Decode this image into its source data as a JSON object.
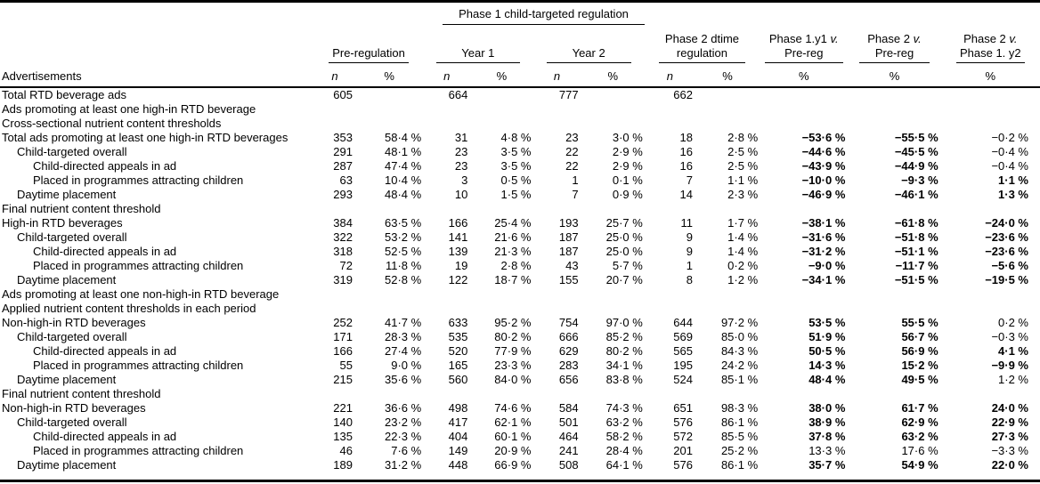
{
  "table": {
    "spanner": {
      "label": "Phase 1 child-targeted regulation"
    },
    "stub_header": "Advertisements",
    "groups": [
      {
        "lines": [
          "Pre-regulation"
        ],
        "span": 2
      },
      {
        "lines": [
          "Year 1"
        ],
        "span": 2
      },
      {
        "lines": [
          "Year 2"
        ],
        "span": 2
      },
      {
        "lines": [
          "Phase 2 dtime",
          "regulation"
        ],
        "span": 2
      },
      {
        "lines": [
          "Phase 1.y1 v.",
          "Pre-reg"
        ],
        "span": 1
      },
      {
        "lines": [
          "Phase 2 v.",
          "Pre-reg"
        ],
        "span": 1
      },
      {
        "lines": [
          "Phase 2 v.",
          "Phase 1. y2"
        ],
        "span": 1
      }
    ],
    "sub_headers": [
      "n",
      "%",
      "n",
      "%",
      "n",
      "%",
      "n",
      "%",
      "%",
      "%",
      "%"
    ],
    "rows": [
      {
        "label": "Total RTD beverage ads",
        "indent": 0,
        "cells": [
          "605",
          "",
          "664",
          "",
          "777",
          "",
          "662",
          "",
          "",
          "",
          ""
        ],
        "bold": [
          false,
          false,
          false
        ]
      },
      {
        "label": "Ads promoting at least one high-in RTD beverage",
        "indent": 0,
        "cells": [
          "",
          "",
          "",
          "",
          "",
          "",
          "",
          "",
          "",
          "",
          ""
        ],
        "bold": [
          false,
          false,
          false
        ]
      },
      {
        "label": "Cross-sectional nutrient content thresholds",
        "indent": 0,
        "cells": [
          "",
          "",
          "",
          "",
          "",
          "",
          "",
          "",
          "",
          "",
          ""
        ],
        "bold": [
          false,
          false,
          false
        ]
      },
      {
        "label": "Total ads promoting at least one high-in RTD beverages",
        "indent": 0,
        "cells": [
          "353",
          "58·4 %",
          "31",
          "4·8 %",
          "23",
          "3·0 %",
          "18",
          "2·8 %",
          "−53·6 %",
          "−55·5 %",
          "−0·2 %"
        ],
        "bold": [
          true,
          true,
          false
        ]
      },
      {
        "label": "Child-targeted overall",
        "indent": 1,
        "cells": [
          "291",
          "48·1 %",
          "23",
          "3·5 %",
          "22",
          "2·9 %",
          "16",
          "2·5 %",
          "−44·6 %",
          "−45·5 %",
          "−0·4 %"
        ],
        "bold": [
          true,
          true,
          false
        ]
      },
      {
        "label": "Child-directed appeals in ad",
        "indent": 2,
        "cells": [
          "287",
          "47·4 %",
          "23",
          "3·5 %",
          "22",
          "2·9 %",
          "16",
          "2·5 %",
          "−43·9 %",
          "−44·9 %",
          "−0·4 %"
        ],
        "bold": [
          true,
          true,
          false
        ]
      },
      {
        "label": "Placed in programmes attracting children",
        "indent": 2,
        "cells": [
          "63",
          "10·4 %",
          "3",
          "0·5 %",
          "1",
          "0·1 %",
          "7",
          "1·1 %",
          "−10·0 %",
          "−9·3 %",
          "1·1 %"
        ],
        "bold": [
          true,
          true,
          true
        ]
      },
      {
        "label": "Daytime placement",
        "indent": 1,
        "cells": [
          "293",
          "48·4 %",
          "10",
          "1·5 %",
          "7",
          "0·9 %",
          "14",
          "2·3 %",
          "−46·9 %",
          "−46·1 %",
          "1·3 %"
        ],
        "bold": [
          true,
          true,
          true
        ]
      },
      {
        "label": "Final nutrient content threshold",
        "indent": 0,
        "cells": [
          "",
          "",
          "",
          "",
          "",
          "",
          "",
          "",
          "",
          "",
          ""
        ],
        "bold": [
          false,
          false,
          false
        ]
      },
      {
        "label": "High-in RTD beverages",
        "indent": 0,
        "cells": [
          "384",
          "63·5 %",
          "166",
          "25·4 %",
          "193",
          "25·7 %",
          "11",
          "1·7 %",
          "−38·1 %",
          "−61·8 %",
          "−24·0 %"
        ],
        "bold": [
          true,
          true,
          true
        ]
      },
      {
        "label": "Child-targeted overall",
        "indent": 1,
        "cells": [
          "322",
          "53·2 %",
          "141",
          "21·6 %",
          "187",
          "25·0 %",
          "9",
          "1·4 %",
          "−31·6 %",
          "−51·8 %",
          "−23·6 %"
        ],
        "bold": [
          true,
          true,
          true
        ]
      },
      {
        "label": "Child-directed appeals in ad",
        "indent": 2,
        "cells": [
          "318",
          "52·5 %",
          "139",
          "21·3 %",
          "187",
          "25·0 %",
          "9",
          "1·4 %",
          "−31·2 %",
          "−51·1 %",
          "−23·6 %"
        ],
        "bold": [
          true,
          true,
          true
        ]
      },
      {
        "label": "Placed in programmes attracting children",
        "indent": 2,
        "cells": [
          "72",
          "11·8 %",
          "19",
          "2·8 %",
          "43",
          "5·7 %",
          "1",
          "0·2 %",
          "−9·0 %",
          "−11·7 %",
          "−5·6 %"
        ],
        "bold": [
          true,
          true,
          true
        ]
      },
      {
        "label": "Daytime placement",
        "indent": 1,
        "cells": [
          "319",
          "52·8 %",
          "122",
          "18·7 %",
          "155",
          "20·7 %",
          "8",
          "1·2 %",
          "−34·1 %",
          "−51·5 %",
          "−19·5 %"
        ],
        "bold": [
          true,
          true,
          true
        ]
      },
      {
        "label": "Ads promoting at least one non-high-in RTD beverage",
        "indent": 0,
        "cells": [
          "",
          "",
          "",
          "",
          "",
          "",
          "",
          "",
          "",
          "",
          ""
        ],
        "bold": [
          false,
          false,
          false
        ]
      },
      {
        "label": "Applied nutrient content thresholds in each period",
        "indent": 0,
        "cells": [
          "",
          "",
          "",
          "",
          "",
          "",
          "",
          "",
          "",
          "",
          ""
        ],
        "bold": [
          false,
          false,
          false
        ]
      },
      {
        "label": "Non-high-in RTD beverages",
        "indent": 0,
        "cells": [
          "252",
          "41·7 %",
          "633",
          "95·2 %",
          "754",
          "97·0 %",
          "644",
          "97·2 %",
          "53·5 %",
          "55·5 %",
          "0·2 %"
        ],
        "bold": [
          true,
          true,
          false
        ]
      },
      {
        "label": "Child-targeted overall",
        "indent": 1,
        "cells": [
          "171",
          "28·3 %",
          "535",
          "80·2 %",
          "666",
          "85·2 %",
          "569",
          "85·0 %",
          "51·9 %",
          "56·7 %",
          "−0·3 %"
        ],
        "bold": [
          true,
          true,
          false
        ]
      },
      {
        "label": "Child-directed appeals in ad",
        "indent": 2,
        "cells": [
          "166",
          "27·4 %",
          "520",
          "77·9 %",
          "629",
          "80·2 %",
          "565",
          "84·3 %",
          "50·5 %",
          "56·9 %",
          "4·1 %"
        ],
        "bold": [
          true,
          true,
          true
        ]
      },
      {
        "label": "Placed in programmes attracting children",
        "indent": 2,
        "cells": [
          "55",
          "9·0 %",
          "165",
          "23·3 %",
          "283",
          "34·1 %",
          "195",
          "24·2 %",
          "14·3 %",
          "15·2 %",
          "−9·9 %"
        ],
        "bold": [
          true,
          true,
          true
        ]
      },
      {
        "label": "Daytime placement",
        "indent": 1,
        "cells": [
          "215",
          "35·6 %",
          "560",
          "84·0 %",
          "656",
          "83·8 %",
          "524",
          "85·1 %",
          "48·4 %",
          "49·5 %",
          "1·2 %"
        ],
        "bold": [
          true,
          true,
          false
        ]
      },
      {
        "label": "Final nutrient content threshold",
        "indent": 0,
        "cells": [
          "",
          "",
          "",
          "",
          "",
          "",
          "",
          "",
          "",
          "",
          ""
        ],
        "bold": [
          false,
          false,
          false
        ]
      },
      {
        "label": "Non-high-in RTD beverages",
        "indent": 0,
        "cells": [
          "221",
          "36·6 %",
          "498",
          "74·6 %",
          "584",
          "74·3 %",
          "651",
          "98·3 %",
          "38·0 %",
          "61·7 %",
          "24·0 %"
        ],
        "bold": [
          true,
          true,
          true
        ]
      },
      {
        "label": "Child-targeted overall",
        "indent": 1,
        "cells": [
          "140",
          "23·2 %",
          "417",
          "62·1 %",
          "501",
          "63·2 %",
          "576",
          "86·1 %",
          "38·9 %",
          "62·9 %",
          "22·9 %"
        ],
        "bold": [
          true,
          true,
          true
        ]
      },
      {
        "label": "Child-directed appeals in ad",
        "indent": 2,
        "cells": [
          "135",
          "22·3 %",
          "404",
          "60·1 %",
          "464",
          "58·2 %",
          "572",
          "85·5 %",
          "37·8 %",
          "63·2 %",
          "27·3 %"
        ],
        "bold": [
          true,
          true,
          true
        ]
      },
      {
        "label": "Placed in programmes attracting children",
        "indent": 2,
        "cells": [
          "46",
          "7·6 %",
          "149",
          "20·9 %",
          "241",
          "28·4 %",
          "201",
          "25·2 %",
          "13·3 %",
          "17·6 %",
          "−3·3 %"
        ],
        "bold": [
          false,
          false,
          false
        ]
      },
      {
        "label": "Daytime placement",
        "indent": 1,
        "cells": [
          "189",
          "31·2 %",
          "448",
          "66·9 %",
          "508",
          "64·1 %",
          "576",
          "86·1 %",
          "35·7 %",
          "54·9 %",
          "22·0 %"
        ],
        "bold": [
          true,
          true,
          true
        ]
      }
    ]
  }
}
